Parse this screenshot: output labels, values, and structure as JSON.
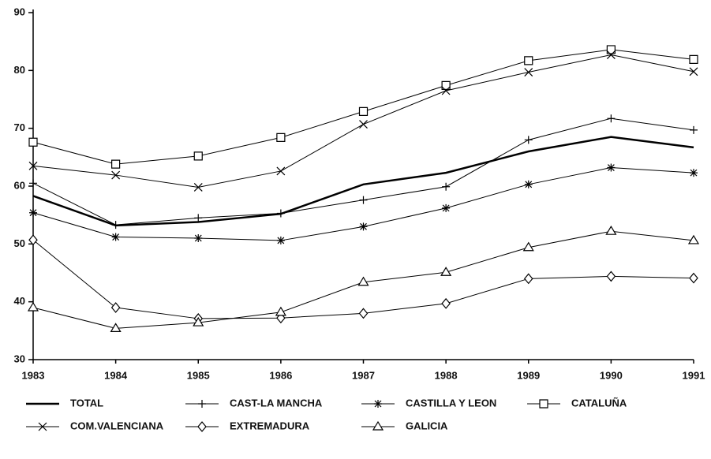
{
  "chart_data": {
    "type": "line",
    "categories": [
      "1983",
      "1984",
      "1985",
      "1986",
      "1987",
      "1988",
      "1989",
      "1990",
      "1991"
    ],
    "ylim": [
      30,
      90
    ],
    "yticks": [
      30,
      40,
      50,
      60,
      70,
      80,
      90
    ],
    "series": [
      {
        "name": "TOTAL",
        "color": "#000000",
        "marker": "none",
        "values": [
          58.3,
          53.2,
          53.8,
          55.2,
          60.3,
          62.3,
          66,
          68.5,
          66.7
        ]
      },
      {
        "name": "CAST-LA MANCHA",
        "color": "#000000",
        "marker": "plus",
        "values": [
          60.5,
          53.3,
          54.5,
          55.3,
          57.6,
          59.9,
          68,
          71.7,
          69.7
        ]
      },
      {
        "name": "CASTILLA Y LEON",
        "color": "#000000",
        "marker": "asterisk",
        "values": [
          55.4,
          51.2,
          51,
          50.6,
          53,
          56.2,
          60.3,
          63.2,
          62.3
        ]
      },
      {
        "name": "CATALUÑA",
        "color": "#000000",
        "marker": "square",
        "values": [
          67.6,
          63.8,
          65.2,
          68.4,
          72.9,
          77.4,
          81.7,
          83.6,
          81.9
        ]
      },
      {
        "name": "COM.VALENCIANA",
        "color": "#000000",
        "marker": "x",
        "values": [
          63.5,
          61.9,
          59.8,
          62.6,
          70.7,
          76.5,
          79.7,
          82.7,
          79.8
        ]
      },
      {
        "name": "EXTREMADURA",
        "color": "#000000",
        "marker": "diamond",
        "values": [
          50.7,
          39,
          37.1,
          37.2,
          38,
          39.7,
          44,
          44.4,
          44.1
        ]
      },
      {
        "name": "GALICIA",
        "color": "#000000",
        "marker": "triangle",
        "values": [
          39,
          35.4,
          36.4,
          38.2,
          43.4,
          45.1,
          49.4,
          52.2,
          50.6
        ]
      }
    ]
  }
}
